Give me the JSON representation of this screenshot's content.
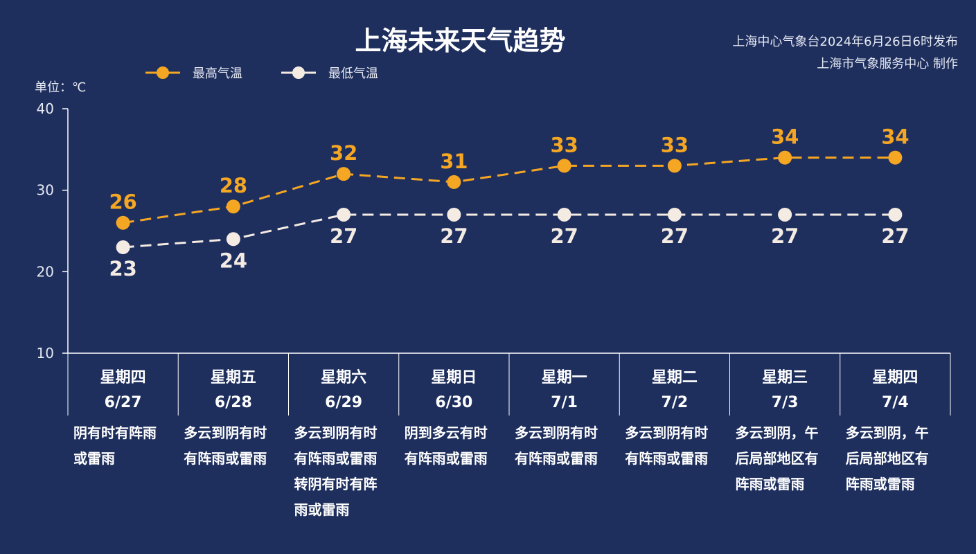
{
  "title": "上海未来天气趋势",
  "source_line1": "上海中心气象台2024年6月26日6时发布",
  "source_line2": "上海市气象服务中心 制作",
  "unit": "单位：℃",
  "colors": {
    "background": "#1e2f5e",
    "high": "#f5a623",
    "low": "#f4ebe3",
    "axis": "#ffffff"
  },
  "chart_data": {
    "type": "line",
    "title": "上海未来天气趋势",
    "ylim": [
      10,
      40
    ],
    "yticks": [
      10,
      20,
      30,
      40
    ],
    "grid": false,
    "legend_position": "top-left",
    "categories": [
      {
        "weekday": "星期四",
        "date": "6/27",
        "desc": [
          "阴有时有阵雨",
          "或雷雨"
        ]
      },
      {
        "weekday": "星期五",
        "date": "6/28",
        "desc": [
          "多云到阴有时",
          "有阵雨或雷雨"
        ]
      },
      {
        "weekday": "星期六",
        "date": "6/29",
        "desc": [
          "多云到阴有时",
          "有阵雨或雷雨",
          "转阴有时有阵",
          "雨或雷雨"
        ]
      },
      {
        "weekday": "星期日",
        "date": "6/30",
        "desc": [
          "阴到多云有时",
          "有阵雨或雷雨"
        ]
      },
      {
        "weekday": "星期一",
        "date": "7/1",
        "desc": [
          "多云到阴有时",
          "有阵雨或雷雨"
        ]
      },
      {
        "weekday": "星期二",
        "date": "7/2",
        "desc": [
          "多云到阴有时",
          "有阵雨或雷雨"
        ]
      },
      {
        "weekday": "星期三",
        "date": "7/3",
        "desc": [
          "多云到阴，午",
          "后局部地区有",
          "阵雨或雷雨"
        ]
      },
      {
        "weekday": "星期四",
        "date": "7/4",
        "desc": [
          "多云到阴，午",
          "后局部地区有",
          "阵雨或雷雨"
        ]
      }
    ],
    "series": [
      {
        "name": "最高气温",
        "key": "high",
        "values": [
          26,
          28,
          32,
          31,
          33,
          33,
          34,
          34
        ]
      },
      {
        "name": "最低气温",
        "key": "low",
        "values": [
          23,
          24,
          27,
          27,
          27,
          27,
          27,
          27
        ]
      }
    ]
  }
}
